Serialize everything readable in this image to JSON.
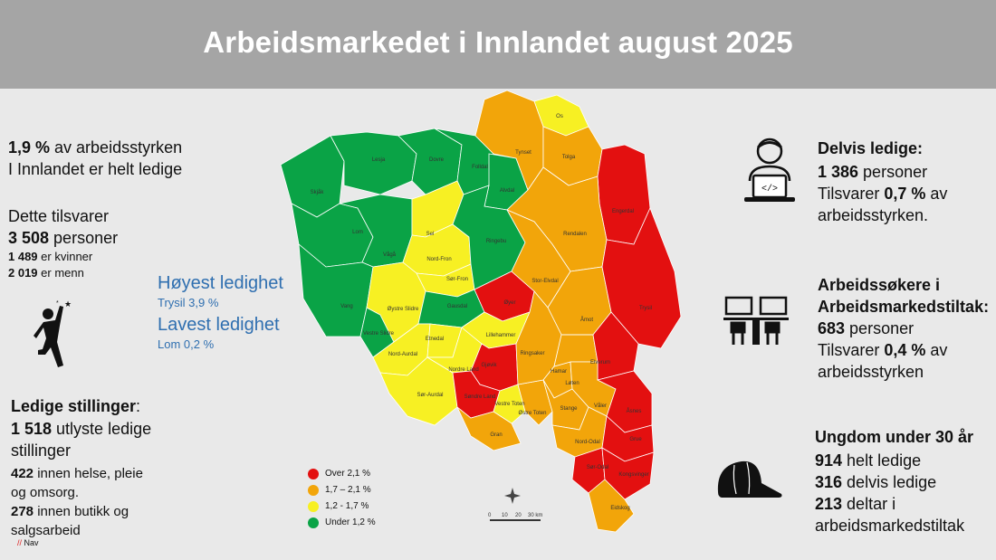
{
  "title": "Arbeidsmarkedet i Innlandet august 2025",
  "left": {
    "unemp_pct": "1,9 %",
    "unemp_rest": " av arbeidsstyrken",
    "unemp_line2": "I Innlandet er helt ledige",
    "equiv": "Dette tilsvarer",
    "persons_num": "3 508",
    "persons_rest": " personer",
    "women_num": "1 489",
    "women_rest": " er kvinner",
    "men_num": "2 019",
    "men_rest": " er menn",
    "vacancies_title": "Ledige stillinger",
    "vacancies_colon": ":",
    "vac_num": "1 518",
    "vac_rest": " utlyste ledige",
    "vac_line2": "stillinger",
    "health_num": "422",
    "health_rest": "  innen helse, pleie",
    "health_line2": " og omsorg.",
    "retail_num": "278",
    "retail_rest": " innen butikk og",
    "retail_line2": "salgsarbeid",
    "source": "Nav"
  },
  "extremes": {
    "highest_title": "Høyest ledighet",
    "highest_value": "Trysil 3,9  %",
    "lowest_title": "Lavest ledighet",
    "lowest_value": "Lom 0,2 %"
  },
  "right": {
    "partial_title": "Delvis ledige:",
    "partial_num": "1 386",
    "partial_rest": " personer",
    "partial_eq_pre": "Tilsvarer ",
    "partial_pct": "0,7 %",
    "partial_eq_post": " av",
    "partial_line3": " arbeidsstyrken.",
    "measures_title1": "Arbeidssøkere i",
    "measures_title2": "Arbeidsmarkedstiltak:",
    "measures_num": "683",
    "measures_rest": " personer",
    "measures_eq_pre": "Tilsvarer ",
    "measures_pct": "0,4 %",
    "measures_eq_post": " av",
    "measures_line4": "arbeidsstyrken",
    "youth_title": "Ungdom under 30 år",
    "youth_full_num": "914",
    "youth_full_rest": " helt ledige",
    "youth_partial_num": "316",
    "youth_partial_rest": " delvis ledige",
    "youth_measure_num": "213",
    "youth_measure_rest": " deltar i",
    "youth_measure_line2": "arbeidsmarkedstiltak"
  },
  "legend": [
    {
      "label": "Over 2,1 %",
      "color": "#e31010"
    },
    {
      "label": "1,7 – 2,1  %",
      "color": "#f2a50a"
    },
    {
      "label": "1,2 - 1,7 %",
      "color": "#f7f023"
    },
    {
      "label": "Under 1,2 %",
      "color": "#0aa346"
    }
  ],
  "scale": {
    "ticks": [
      "0",
      "10",
      "20",
      "30 km"
    ]
  },
  "icons": {
    "celebrate": "person-celebrate-icon",
    "laptop": "person-laptop-icon",
    "classroom": "classroom-icon",
    "cap": "cap-icon",
    "compass": "compass-icon"
  },
  "municipalities": [
    {
      "name": "Skjåk",
      "color": "#0aa346"
    },
    {
      "name": "Lesja",
      "color": "#0aa346"
    },
    {
      "name": "Dovre",
      "color": "#0aa346"
    },
    {
      "name": "Folldal",
      "color": "#0aa346"
    },
    {
      "name": "Alvdal",
      "color": "#0aa346"
    },
    {
      "name": "Lom",
      "color": "#0aa346"
    },
    {
      "name": "Vågå",
      "color": "#0aa346"
    },
    {
      "name": "Sel",
      "color": "#f7f023"
    },
    {
      "name": "Nord-Fron",
      "color": "#f7f023"
    },
    {
      "name": "Sør-Fron",
      "color": "#f7f023"
    },
    {
      "name": "Ringebu",
      "color": "#0aa346"
    },
    {
      "name": "Vang",
      "color": "#0aa346"
    },
    {
      "name": "Vestre Slidre",
      "color": "#0aa346"
    },
    {
      "name": "Øystre Slidre",
      "color": "#f7f023"
    },
    {
      "name": "Gausdal",
      "color": "#0aa346"
    },
    {
      "name": "Øyer",
      "color": "#e31010"
    },
    {
      "name": "Nord-Aurdal",
      "color": "#f7f023"
    },
    {
      "name": "Etnedal",
      "color": "#f7f023"
    },
    {
      "name": "Sør-Aurdal",
      "color": "#f7f023"
    },
    {
      "name": "Nordre Land",
      "color": "#f7f023"
    },
    {
      "name": "Lillehammer",
      "color": "#f7f023"
    },
    {
      "name": "Gjøvik",
      "color": "#e31010"
    },
    {
      "name": "Søndre Land",
      "color": "#e31010"
    },
    {
      "name": "Vestre Toten",
      "color": "#f7f023"
    },
    {
      "name": "Østre Toten",
      "color": "#f2a50a"
    },
    {
      "name": "Gran",
      "color": "#f2a50a"
    },
    {
      "name": "Os",
      "color": "#f7f023"
    },
    {
      "name": "Tynset",
      "color": "#f2a50a"
    },
    {
      "name": "Tolga",
      "color": "#f2a50a"
    },
    {
      "name": "Engerdal",
      "color": "#e31010"
    },
    {
      "name": "Rendalen",
      "color": "#f2a50a"
    },
    {
      "name": "Stor-Elvdal",
      "color": "#f2a50a"
    },
    {
      "name": "Åmot",
      "color": "#f2a50a"
    },
    {
      "name": "Trysil",
      "color": "#e31010"
    },
    {
      "name": "Ringsaker",
      "color": "#f2a50a"
    },
    {
      "name": "Hamar",
      "color": "#f2a50a"
    },
    {
      "name": "Løten",
      "color": "#f2a50a"
    },
    {
      "name": "Elverum",
      "color": "#e31010"
    },
    {
      "name": "Stange",
      "color": "#f2a50a"
    },
    {
      "name": "Våler",
      "color": "#f2a50a"
    },
    {
      "name": "Åsnes",
      "color": "#e31010"
    },
    {
      "name": "Nord-Odal",
      "color": "#f2a50a"
    },
    {
      "name": "Grue",
      "color": "#e31010"
    },
    {
      "name": "Sør-Odal",
      "color": "#e31010"
    },
    {
      "name": "Kongsvinger",
      "color": "#e31010"
    },
    {
      "name": "Eidskog",
      "color": "#f2a50a"
    }
  ]
}
